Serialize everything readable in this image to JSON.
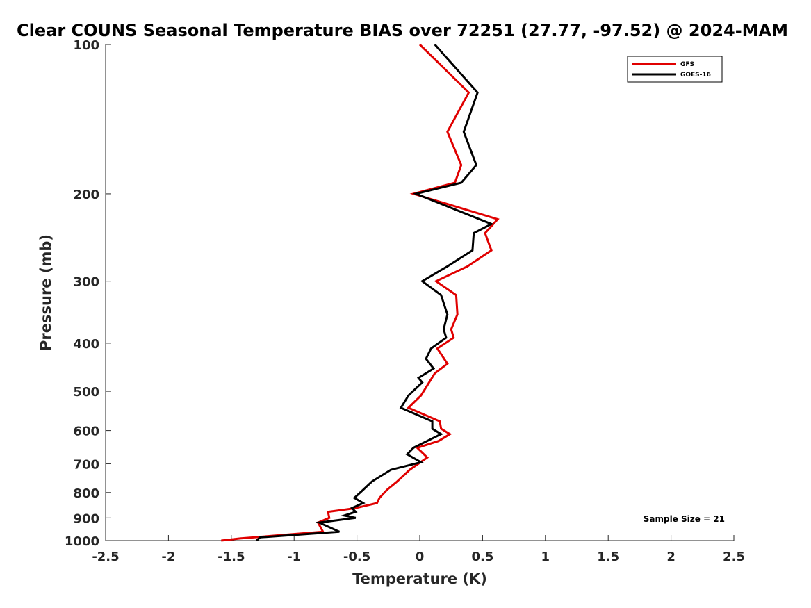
{
  "chart_data": {
    "type": "line",
    "title": "Clear COUNS Seasonal Temperature BIAS over 72251 (27.77, -97.52) @ 2024-MAM",
    "xlabel": "Temperature (K)",
    "ylabel": "Pressure (mb)",
    "xlim": [
      -2.5,
      2.5
    ],
    "ylim": [
      1000,
      100
    ],
    "y_scale": "log",
    "y_reversed": true,
    "xticks": [
      "-2.5",
      "-2",
      "-1.5",
      "-1",
      "-0.5",
      "0",
      "0.5",
      "1",
      "1.5",
      "2",
      "2.5"
    ],
    "xtick_values": [
      -2.5,
      -2,
      -1.5,
      -1,
      -0.5,
      0,
      0.5,
      1,
      1.5,
      2,
      2.5
    ],
    "yticks": [
      "100",
      "200",
      "300",
      "400",
      "500",
      "600",
      "700",
      "800",
      "900",
      "1000"
    ],
    "ytick_values": [
      100,
      200,
      300,
      400,
      500,
      600,
      700,
      800,
      900,
      1000
    ],
    "grid": false,
    "legend_position": "top-right",
    "annotation": "Sample Size = 21",
    "series": [
      {
        "name": "GFS",
        "color": "#e00000",
        "points": [
          [
            0.0,
            100
          ],
          [
            0.39,
            125
          ],
          [
            0.22,
            150
          ],
          [
            0.33,
            175
          ],
          [
            0.28,
            190
          ],
          [
            -0.05,
            200
          ],
          [
            0.62,
            225
          ],
          [
            0.52,
            240
          ],
          [
            0.57,
            260
          ],
          [
            0.38,
            280
          ],
          [
            0.13,
            300
          ],
          [
            0.29,
            320
          ],
          [
            0.3,
            350
          ],
          [
            0.25,
            375
          ],
          [
            0.27,
            390
          ],
          [
            0.14,
            410
          ],
          [
            0.22,
            440
          ],
          [
            0.12,
            460
          ],
          [
            0.01,
            510
          ],
          [
            -0.09,
            540
          ],
          [
            0.16,
            575
          ],
          [
            0.17,
            595
          ],
          [
            0.24,
            610
          ],
          [
            0.15,
            630
          ],
          [
            -0.02,
            650
          ],
          [
            0.06,
            680
          ],
          [
            -0.08,
            720
          ],
          [
            -0.18,
            760
          ],
          [
            -0.26,
            790
          ],
          [
            -0.32,
            820
          ],
          [
            -0.34,
            840
          ],
          [
            -0.51,
            860
          ],
          [
            -0.73,
            875
          ],
          [
            -0.72,
            900
          ],
          [
            -0.81,
            920
          ],
          [
            -0.77,
            960
          ],
          [
            -1.43,
            990
          ],
          [
            -1.58,
            1000
          ]
        ]
      },
      {
        "name": "GOES-16",
        "color": "#000000",
        "points": [
          [
            0.12,
            100
          ],
          [
            0.46,
            125
          ],
          [
            0.35,
            150
          ],
          [
            0.45,
            175
          ],
          [
            0.33,
            190
          ],
          [
            -0.03,
            200
          ],
          [
            0.57,
            230
          ],
          [
            0.43,
            240
          ],
          [
            0.42,
            260
          ],
          [
            0.22,
            280
          ],
          [
            0.02,
            300
          ],
          [
            0.17,
            320
          ],
          [
            0.22,
            350
          ],
          [
            0.19,
            375
          ],
          [
            0.21,
            390
          ],
          [
            0.09,
            410
          ],
          [
            0.05,
            430
          ],
          [
            0.11,
            450
          ],
          [
            -0.01,
            470
          ],
          [
            0.02,
            480
          ],
          [
            -0.09,
            510
          ],
          [
            -0.15,
            540
          ],
          [
            0.1,
            575
          ],
          [
            0.1,
            595
          ],
          [
            0.17,
            610
          ],
          [
            -0.05,
            650
          ],
          [
            -0.1,
            670
          ],
          [
            0.01,
            695
          ],
          [
            -0.23,
            720
          ],
          [
            -0.38,
            760
          ],
          [
            -0.45,
            790
          ],
          [
            -0.52,
            820
          ],
          [
            -0.45,
            840
          ],
          [
            -0.54,
            860
          ],
          [
            -0.51,
            875
          ],
          [
            -0.6,
            890
          ],
          [
            -0.51,
            900
          ],
          [
            -0.8,
            920
          ],
          [
            -0.64,
            960
          ],
          [
            -1.27,
            985
          ],
          [
            -1.3,
            1000
          ]
        ]
      }
    ]
  }
}
